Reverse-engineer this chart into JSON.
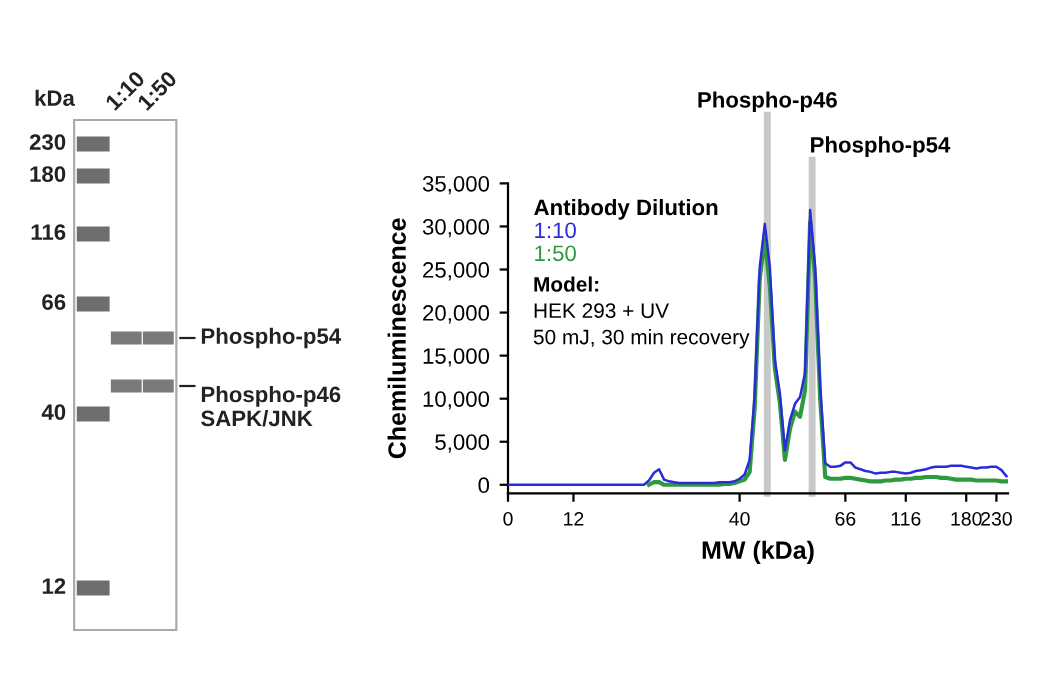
{
  "chart_data": [
    {
      "type": "other",
      "annotations": [
        "kDa",
        "230",
        "180",
        "116",
        "66",
        "40",
        "12",
        "1:10",
        "1:50",
        "Phospho-p54",
        "Phospho-p46\nSAPK/JNK"
      ]
    },
    {
      "type": "line",
      "xlabel": "MW (kDa)",
      "ylabel": "Chemiluminescence",
      "legend_title": "Antibody Dilution",
      "legend": "top left",
      "grid": false,
      "categories": [
        "0",
        null,
        null,
        null,
        null,
        null,
        null,
        null,
        null,
        null,
        null,
        null,
        null,
        "12",
        null,
        null,
        null,
        null,
        null,
        null,
        null,
        null,
        null,
        null,
        null,
        null,
        null,
        null,
        null,
        null,
        null,
        null,
        null,
        null,
        null,
        null,
        null,
        null,
        null,
        null,
        null,
        null,
        null,
        null,
        null,
        null,
        "40",
        null,
        null,
        null,
        null,
        null,
        null,
        null,
        null,
        null,
        null,
        null,
        null,
        null,
        null,
        null,
        null,
        null,
        null,
        null,
        null,
        "66",
        null,
        null,
        null,
        null,
        null,
        null,
        null,
        null,
        null,
        null,
        null,
        "116",
        null,
        null,
        null,
        null,
        null,
        null,
        null,
        null,
        null,
        null,
        null,
        "180",
        null,
        null,
        null,
        null,
        null,
        "230",
        null,
        null
      ],
      "ylim": [
        -1000,
        35000
      ],
      "yticks": [
        {
          "value": 0,
          "label": "0"
        },
        {
          "value": 5000,
          "label": "5,000"
        },
        {
          "value": 10000,
          "label": "10,000"
        },
        {
          "value": 15000,
          "label": "15,000"
        },
        {
          "value": 20000,
          "label": "20,000"
        },
        {
          "value": 25000,
          "label": "25,000"
        },
        {
          "value": 30000,
          "label": "30,000"
        },
        {
          "value": 35000,
          "label": "35,000"
        }
      ],
      "annotations": [
        "Phospho-p46",
        "Phospho-p54",
        "Model:",
        "HEK 293 + UV",
        "50 mJ, 30 min recovery"
      ],
      "series": [
        {
          "name": "1:10",
          "color": "#2b2bd9",
          "values": [
            0,
            0,
            0,
            0,
            0,
            0,
            0,
            0,
            0,
            0,
            0,
            0,
            0,
            0,
            0,
            0,
            0,
            0,
            0,
            0,
            0,
            0,
            0,
            0,
            0,
            0,
            0,
            0,
            500,
            1400,
            1800,
            600,
            400,
            300,
            200,
            200,
            200,
            200,
            200,
            200,
            200,
            200,
            300,
            300,
            300,
            400,
            700,
            1200,
            2900,
            10600,
            25300,
            30300,
            25300,
            14500,
            10600,
            4000,
            7500,
            9400,
            10200,
            13000,
            31900,
            25300,
            11400,
            2500,
            2100,
            2100,
            2200,
            2600,
            2600,
            2000,
            1800,
            1600,
            1500,
            1300,
            1400,
            1400,
            1500,
            1500,
            1400,
            1300,
            1400,
            1600,
            1700,
            1800,
            2000,
            2100,
            2100,
            2100,
            2200,
            2200,
            2200,
            2100,
            2000,
            1900,
            2000,
            2000,
            2100,
            2100,
            1700,
            1000
          ]
        },
        {
          "name": "1:50",
          "color": "#2e9a3e",
          "values": [
            null,
            null,
            null,
            null,
            null,
            null,
            null,
            null,
            null,
            null,
            null,
            null,
            null,
            null,
            null,
            null,
            null,
            null,
            null,
            null,
            null,
            null,
            null,
            null,
            null,
            null,
            null,
            null,
            0,
            300,
            300,
            0,
            0,
            0,
            0,
            0,
            0,
            0,
            0,
            0,
            0,
            0,
            0,
            100,
            100,
            200,
            400,
            600,
            1500,
            9000,
            24000,
            28500,
            23000,
            13500,
            9500,
            2900,
            6500,
            8500,
            7900,
            11000,
            30500,
            24000,
            10000,
            900,
            700,
            700,
            700,
            800,
            800,
            700,
            600,
            500,
            400,
            400,
            400,
            500,
            500,
            600,
            600,
            700,
            700,
            800,
            800,
            900,
            900,
            900,
            800,
            800,
            700,
            600,
            600,
            600,
            600,
            500,
            500,
            500,
            500,
            500,
            400,
            400
          ]
        }
      ]
    }
  ]
}
